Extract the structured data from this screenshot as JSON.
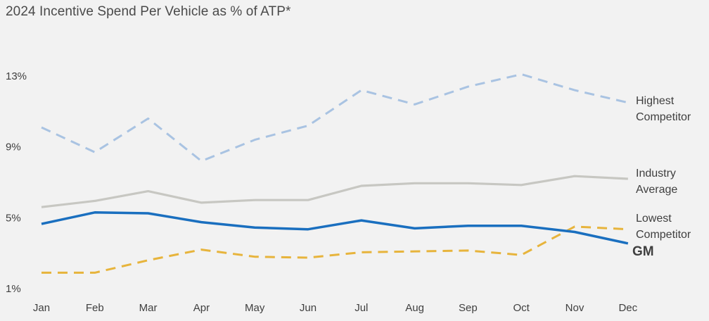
{
  "chart_data": {
    "type": "line",
    "title": "2024 Incentive Spend Per Vehicle as % of ATP*",
    "xlabel": "",
    "ylabel": "",
    "categories": [
      "Jan",
      "Feb",
      "Mar",
      "Apr",
      "May",
      "Jun",
      "Jul",
      "Aug",
      "Sep",
      "Oct",
      "Nov",
      "Dec"
    ],
    "y_ticks": [
      1,
      5,
      9,
      13
    ],
    "y_tick_labels": [
      "1%",
      "5%",
      "9%",
      "13%"
    ],
    "ylim": [
      1,
      13
    ],
    "grid": false,
    "legend": "direct labels at line ends",
    "series": [
      {
        "name": "Highest Competitor",
        "label_lines": [
          "Highest",
          "Competitor"
        ],
        "values": [
          10.1,
          8.7,
          10.6,
          8.2,
          9.4,
          10.2,
          12.2,
          11.4,
          12.4,
          13.1,
          12.2,
          11.5
        ],
        "color": "#a9c3e2",
        "style": "dashed"
      },
      {
        "name": "Industry Average",
        "label_lines": [
          "Industry",
          "Average"
        ],
        "values": [
          5.6,
          5.95,
          6.5,
          5.85,
          6.0,
          6.0,
          6.8,
          6.95,
          6.95,
          6.85,
          7.35,
          7.2
        ],
        "color": "#c7c7c2",
        "style": "solid"
      },
      {
        "name": "Lowest Competitor",
        "label_lines": [
          "Lowest",
          "Competitor"
        ],
        "values": [
          1.9,
          1.9,
          2.6,
          3.2,
          2.8,
          2.75,
          3.05,
          3.1,
          3.15,
          2.9,
          4.5,
          4.35
        ],
        "color": "#e7b43c",
        "style": "dashed"
      },
      {
        "name": "GM",
        "label_lines": [
          "GM"
        ],
        "values": [
          4.65,
          5.3,
          5.25,
          4.75,
          4.45,
          4.35,
          4.85,
          4.4,
          4.55,
          4.55,
          4.2,
          3.55
        ],
        "color": "#1a6fbf",
        "style": "solid"
      }
    ]
  }
}
